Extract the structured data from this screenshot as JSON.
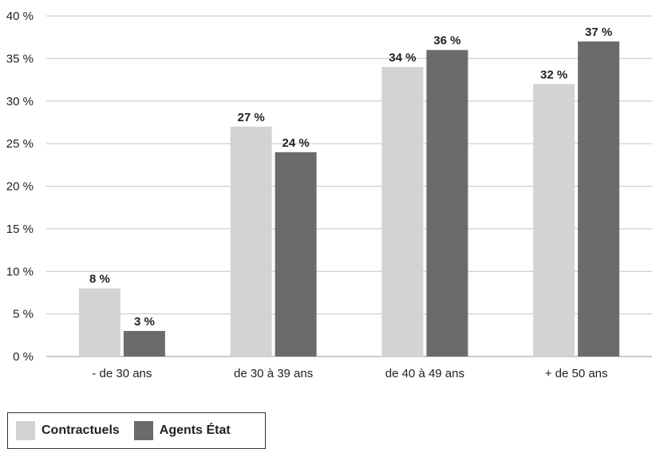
{
  "chart_data": {
    "type": "bar",
    "categories": [
      "- de 30 ans",
      "de 30 à 39 ans",
      "de 40 à 49 ans",
      "+ de 50 ans"
    ],
    "series": [
      {
        "name": "Contractuels",
        "values": [
          8,
          27,
          34,
          32
        ],
        "labels": [
          "8 %",
          "27 %",
          "34 %",
          "32 %"
        ],
        "color": "#d2d3d5"
      },
      {
        "name": "Agents État",
        "values": [
          3,
          24,
          36,
          37
        ],
        "labels": [
          "3 %",
          "24 %",
          "36 %",
          "37 %"
        ],
        "color": "#6a6b6d"
      }
    ],
    "ylim": [
      0,
      40
    ],
    "yticks": [
      "0 %",
      "5 %",
      "10 %",
      "15 %",
      "20 %",
      "25 %",
      "30 %",
      "35 %",
      "40 %"
    ],
    "grid": true,
    "legend_position": "bottom-left"
  }
}
